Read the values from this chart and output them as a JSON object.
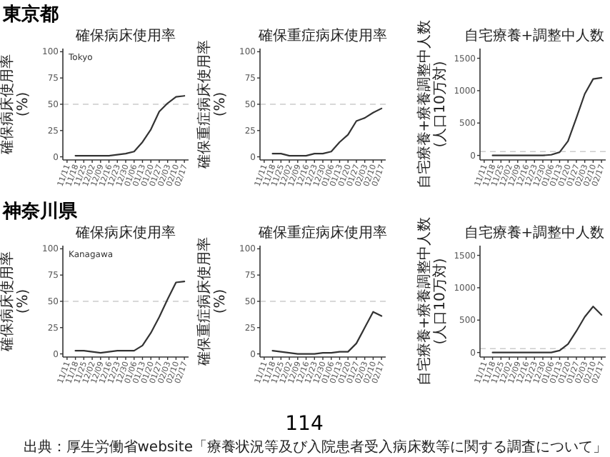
{
  "chart_data": [
    {
      "type": "line",
      "title": "確保病床使用率",
      "ylabel": "確保病床使用率(%)",
      "annotations": [
        "東京都",
        "Tokyo"
      ],
      "categories": [
        "11/11",
        "11/18",
        "11/25",
        "12/02",
        "12/09",
        "12/16",
        "12/23",
        "12/30",
        "01/06",
        "01/13",
        "01/20",
        "01/27",
        "02/03",
        "02/10",
        "02/17"
      ],
      "series": [
        {
          "color": "#333333",
          "values": [
            null,
            1,
            1,
            1,
            1,
            1,
            2,
            3,
            5,
            14,
            26,
            43,
            51,
            57,
            58
          ]
        }
      ],
      "ylim": [
        -3,
        103
      ],
      "yticks": [
        0,
        25,
        50,
        75,
        100
      ],
      "grid": false,
      "ref_lines": [
        {
          "axis": "y",
          "value": 50,
          "color": "#cccccc",
          "line_style": "dashed"
        }
      ]
    },
    {
      "type": "line",
      "title": "確保重症病床使用率",
      "ylabel": "確保重症病床使用率(%)",
      "categories": [
        "11/11",
        "11/18",
        "11/25",
        "12/02",
        "12/09",
        "12/16",
        "12/23",
        "12/30",
        "01/06",
        "01/13",
        "01/20",
        "01/27",
        "02/03",
        "02/10",
        "02/17"
      ],
      "series": [
        {
          "color": "#333333",
          "values": [
            null,
            3,
            3,
            1,
            1,
            1,
            3,
            3,
            5,
            14,
            21,
            34,
            37,
            42,
            46
          ]
        }
      ],
      "ylim": [
        -3,
        103
      ],
      "yticks": [
        0,
        25,
        50,
        75,
        100
      ],
      "grid": false,
      "ref_lines": [
        {
          "axis": "y",
          "value": 50,
          "color": "#cccccc",
          "line_style": "dashed"
        }
      ]
    },
    {
      "type": "line",
      "title": "自宅療養+調整中人数",
      "ylabel": "自宅療養+療養調整中人数(人口10万対)",
      "categories": [
        "11/11",
        "11/18",
        "11/25",
        "12/02",
        "12/09",
        "12/16",
        "12/23",
        "12/30",
        "01/06",
        "01/13",
        "01/20",
        "01/27",
        "02/03",
        "02/10",
        "02/17"
      ],
      "series": [
        {
          "color": "#333333",
          "values": [
            null,
            0,
            0,
            0,
            0,
            0,
            0,
            0,
            10,
            50,
            220,
            580,
            950,
            1180,
            1200
          ]
        }
      ],
      "ylim": [
        -70,
        1650
      ],
      "yticks": [
        0,
        500,
        1000,
        1500
      ],
      "grid": false,
      "ref_lines": [
        {
          "axis": "y",
          "value": 60,
          "color": "#cccccc",
          "line_style": "dashed"
        }
      ]
    },
    {
      "type": "line",
      "title": "確保病床使用率",
      "ylabel": "確保病床使用率(%)",
      "annotations": [
        "神奈川県",
        "Kanagawa"
      ],
      "categories": [
        "11/11",
        "11/18",
        "11/25",
        "12/02",
        "12/09",
        "12/16",
        "12/23",
        "12/30",
        "01/06",
        "01/13",
        "01/20",
        "01/27",
        "02/03",
        "02/10",
        "02/17"
      ],
      "series": [
        {
          "color": "#333333",
          "values": [
            null,
            3,
            3,
            2,
            1,
            2,
            3,
            3,
            3,
            8,
            20,
            35,
            52,
            68,
            69
          ]
        }
      ],
      "ylim": [
        -3,
        103
      ],
      "yticks": [
        0,
        25,
        50,
        75,
        100
      ],
      "grid": false,
      "ref_lines": [
        {
          "axis": "y",
          "value": 50,
          "color": "#cccccc",
          "line_style": "dashed"
        }
      ]
    },
    {
      "type": "line",
      "title": "確保重症病床使用率",
      "ylabel": "確保重症病床使用率(%)",
      "categories": [
        "11/11",
        "11/18",
        "11/25",
        "12/02",
        "12/09",
        "12/16",
        "12/23",
        "12/30",
        "01/06",
        "01/13",
        "01/20",
        "01/27",
        "02/03",
        "02/10",
        "02/17"
      ],
      "series": [
        {
          "color": "#333333",
          "values": [
            null,
            3,
            2,
            1,
            0,
            0,
            0,
            1,
            1,
            2,
            2,
            10,
            25,
            40,
            36
          ]
        }
      ],
      "ylim": [
        -3,
        103
      ],
      "yticks": [
        0,
        25,
        50,
        75,
        100
      ],
      "grid": false,
      "ref_lines": [
        {
          "axis": "y",
          "value": 50,
          "color": "#cccccc",
          "line_style": "dashed"
        }
      ]
    },
    {
      "type": "line",
      "title": "自宅療養+調整中人数",
      "ylabel": "自宅療養+療養調整中人数(人口10万対)",
      "annotations": [
        "114",
        "出典：厚生労働省website「療養状況等及び入院患者受入病床数等に関する調査について」"
      ],
      "categories": [
        "11/11",
        "11/18",
        "11/25",
        "12/02",
        "12/09",
        "12/16",
        "12/23",
        "12/30",
        "01/06",
        "01/13",
        "01/20",
        "01/27",
        "02/03",
        "02/10",
        "02/17"
      ],
      "series": [
        {
          "color": "#333333",
          "values": [
            null,
            0,
            0,
            0,
            0,
            0,
            0,
            0,
            0,
            30,
            130,
            330,
            550,
            710,
            580
          ]
        }
      ],
      "ylim": [
        -70,
        1650
      ],
      "yticks": [
        0,
        500,
        1000,
        1500
      ],
      "grid": false,
      "ref_lines": [
        {
          "axis": "y",
          "value": 60,
          "color": "#cccccc",
          "line_style": "dashed"
        }
      ]
    }
  ]
}
